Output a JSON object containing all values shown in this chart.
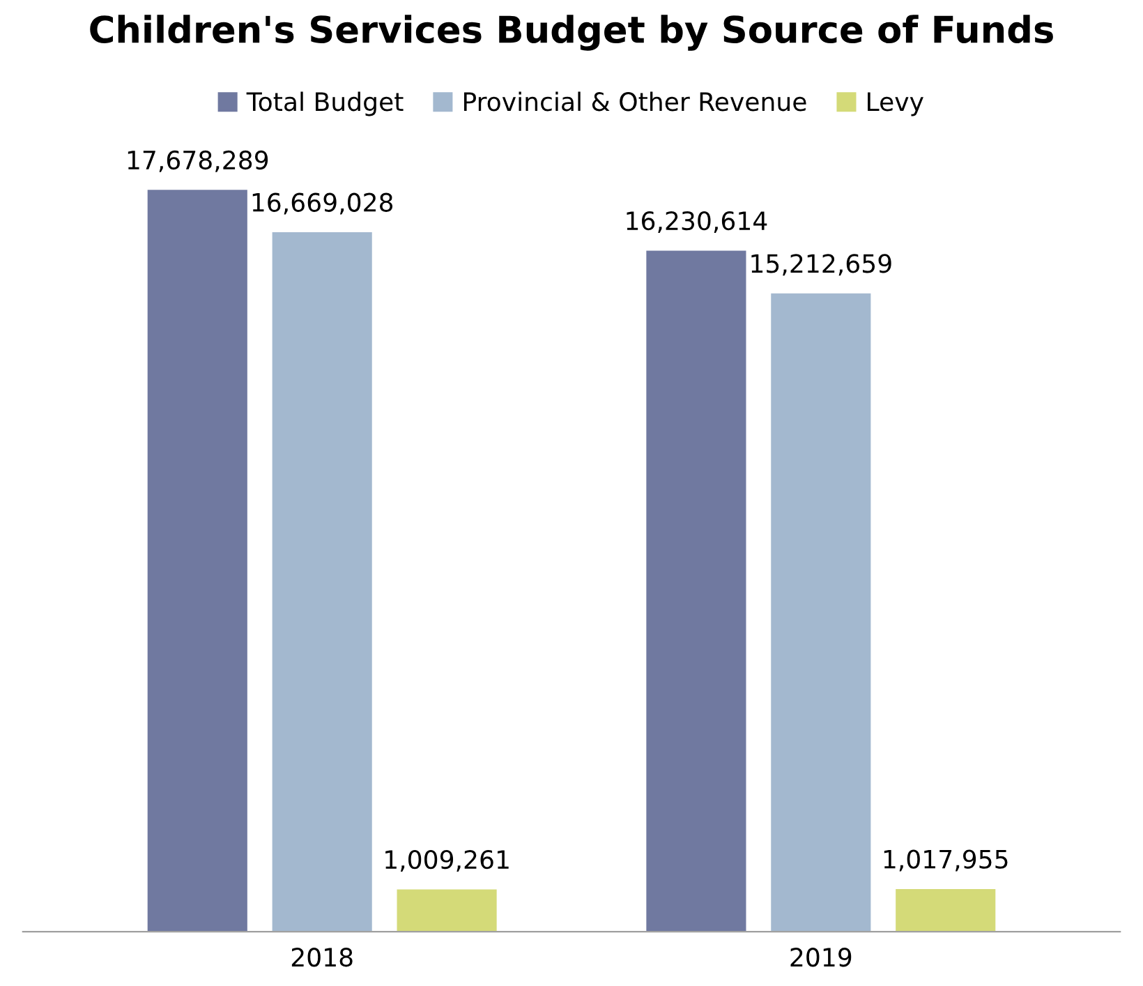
{
  "chart_data": {
    "type": "bar",
    "title": "Children's Services Budget by Source of Funds",
    "categories": [
      "2018",
      "2019"
    ],
    "series": [
      {
        "name": "Total Budget",
        "color": "#7079a0",
        "values": [
          17678289,
          16230614
        ],
        "value_labels": [
          "17,678,289",
          "16,230,614"
        ]
      },
      {
        "name": "Provincial & Other Revenue",
        "color": "#a3b8cf",
        "values": [
          16669028,
          15212659
        ],
        "value_labels": [
          "16,669,028",
          "15,212,659"
        ]
      },
      {
        "name": "Levy",
        "color": "#d4da78",
        "values": [
          1009261,
          1017955
        ],
        "value_labels": [
          "1,009,261",
          "1,017,955"
        ]
      }
    ],
    "tick_labels": "x",
    "grid": false,
    "legend": "top"
  }
}
